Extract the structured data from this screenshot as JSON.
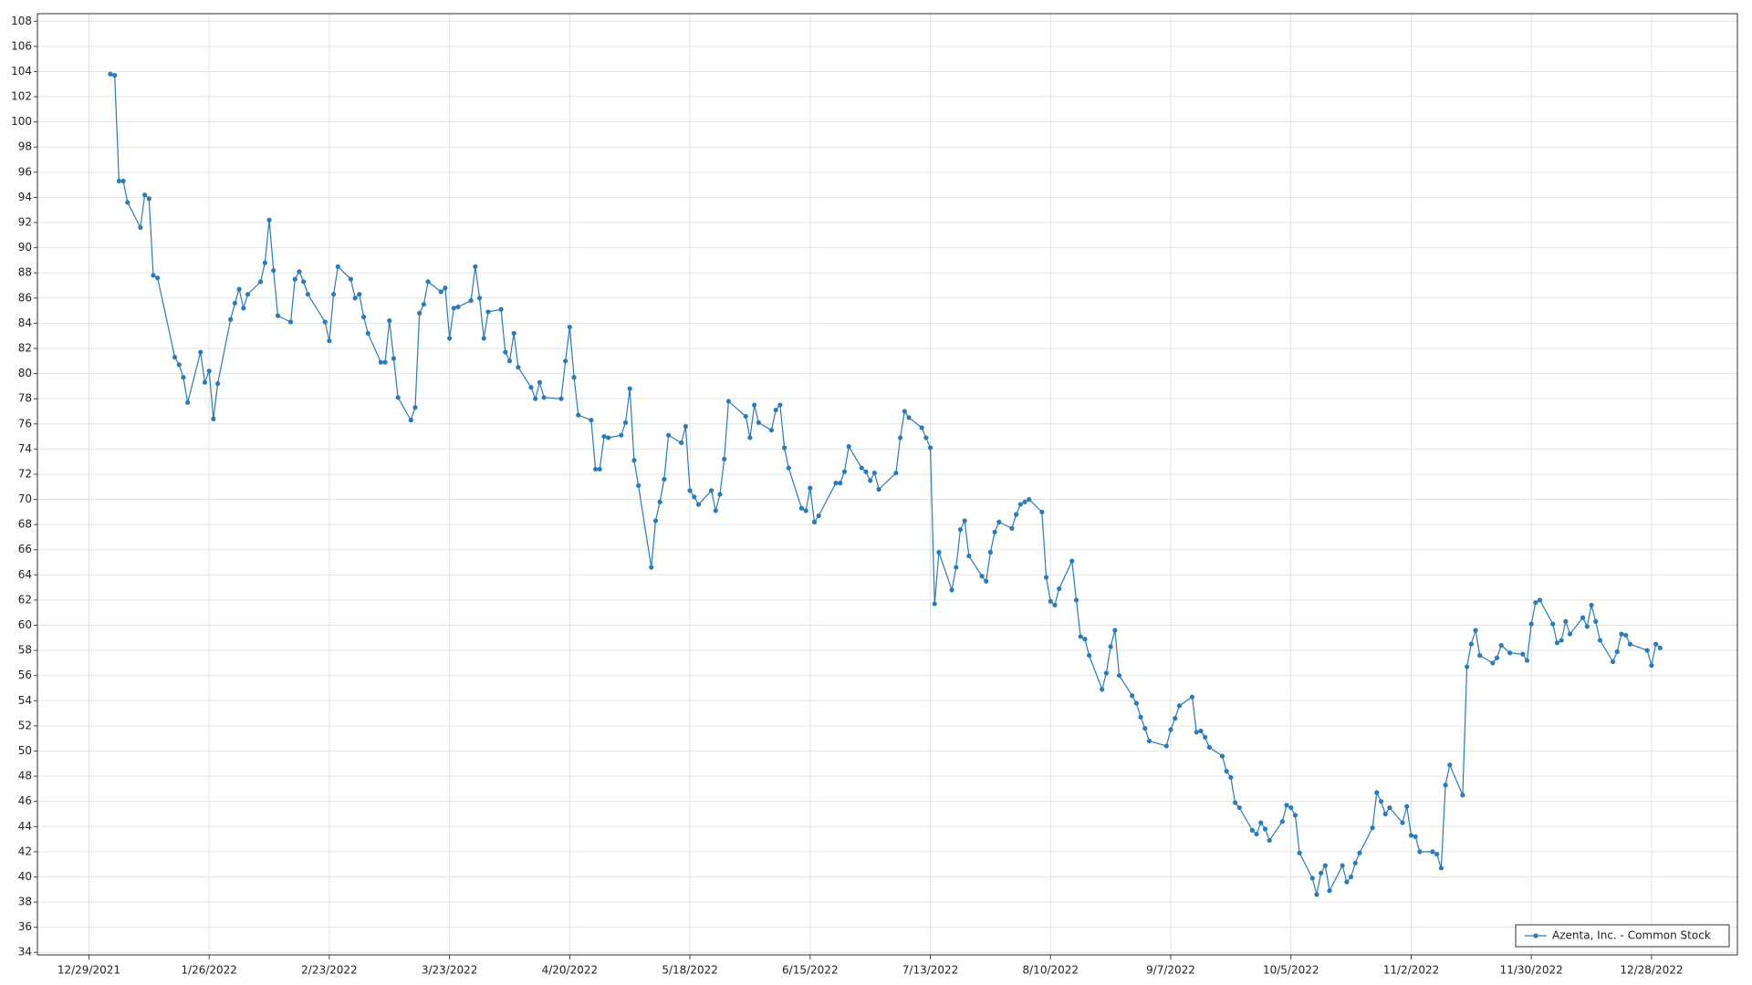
{
  "chart_data": {
    "type": "line",
    "x": [
      "1/3/2022",
      "1/4/2022",
      "1/5/2022",
      "1/6/2022",
      "1/7/2022",
      "1/10/2022",
      "1/11/2022",
      "1/12/2022",
      "1/13/2022",
      "1/14/2022",
      "1/18/2022",
      "1/19/2022",
      "1/20/2022",
      "1/21/2022",
      "1/24/2022",
      "1/25/2022",
      "1/26/2022",
      "1/27/2022",
      "1/28/2022",
      "1/31/2022",
      "2/1/2022",
      "2/2/2022",
      "2/3/2022",
      "2/4/2022",
      "2/7/2022",
      "2/8/2022",
      "2/9/2022",
      "2/10/2022",
      "2/11/2022",
      "2/14/2022",
      "2/15/2022",
      "2/16/2022",
      "2/17/2022",
      "2/18/2022",
      "2/22/2022",
      "2/23/2022",
      "2/24/2022",
      "2/25/2022",
      "2/28/2022",
      "3/1/2022",
      "3/2/2022",
      "3/3/2022",
      "3/4/2022",
      "3/7/2022",
      "3/8/2022",
      "3/9/2022",
      "3/10/2022",
      "3/11/2022",
      "3/14/2022",
      "3/15/2022",
      "3/16/2022",
      "3/17/2022",
      "3/18/2022",
      "3/21/2022",
      "3/22/2022",
      "3/23/2022",
      "3/24/2022",
      "3/25/2022",
      "3/28/2022",
      "3/29/2022",
      "3/30/2022",
      "3/31/2022",
      "4/1/2022",
      "4/4/2022",
      "4/5/2022",
      "4/6/2022",
      "4/7/2022",
      "4/8/2022",
      "4/11/2022",
      "4/12/2022",
      "4/13/2022",
      "4/14/2022",
      "4/18/2022",
      "4/19/2022",
      "4/20/2022",
      "4/21/2022",
      "4/22/2022",
      "4/25/2022",
      "4/26/2022",
      "4/27/2022",
      "4/28/2022",
      "4/29/2022",
      "5/2/2022",
      "5/3/2022",
      "5/4/2022",
      "5/5/2022",
      "5/6/2022",
      "5/9/2022",
      "5/10/2022",
      "5/11/2022",
      "5/12/2022",
      "5/13/2022",
      "5/16/2022",
      "5/17/2022",
      "5/18/2022",
      "5/19/2022",
      "5/20/2022",
      "5/23/2022",
      "5/24/2022",
      "5/25/2022",
      "5/26/2022",
      "5/27/2022",
      "5/31/2022",
      "6/1/2022",
      "6/2/2022",
      "6/3/2022",
      "6/6/2022",
      "6/7/2022",
      "6/8/2022",
      "6/9/2022",
      "6/10/2022",
      "6/13/2022",
      "6/14/2022",
      "6/15/2022",
      "6/16/2022",
      "6/17/2022",
      "6/21/2022",
      "6/22/2022",
      "6/23/2022",
      "6/24/2022",
      "6/27/2022",
      "6/28/2022",
      "6/29/2022",
      "6/30/2022",
      "7/1/2022",
      "7/5/2022",
      "7/6/2022",
      "7/7/2022",
      "7/8/2022",
      "7/11/2022",
      "7/12/2022",
      "7/13/2022",
      "7/14/2022",
      "7/15/2022",
      "7/18/2022",
      "7/19/2022",
      "7/20/2022",
      "7/21/2022",
      "7/22/2022",
      "7/25/2022",
      "7/26/2022",
      "7/27/2022",
      "7/28/2022",
      "7/29/2022",
      "8/1/2022",
      "8/2/2022",
      "8/3/2022",
      "8/4/2022",
      "8/5/2022",
      "8/8/2022",
      "8/9/2022",
      "8/10/2022",
      "8/11/2022",
      "8/12/2022",
      "8/15/2022",
      "8/16/2022",
      "8/17/2022",
      "8/18/2022",
      "8/19/2022",
      "8/22/2022",
      "8/23/2022",
      "8/24/2022",
      "8/25/2022",
      "8/26/2022",
      "8/29/2022",
      "8/30/2022",
      "8/31/2022",
      "9/1/2022",
      "9/2/2022",
      "9/6/2022",
      "9/7/2022",
      "9/8/2022",
      "9/9/2022",
      "9/12/2022",
      "9/13/2022",
      "9/14/2022",
      "9/15/2022",
      "9/16/2022",
      "9/19/2022",
      "9/20/2022",
      "9/21/2022",
      "9/22/2022",
      "9/23/2022",
      "9/26/2022",
      "9/27/2022",
      "9/28/2022",
      "9/29/2022",
      "9/30/2022",
      "10/3/2022",
      "10/4/2022",
      "10/5/2022",
      "10/6/2022",
      "10/7/2022",
      "10/10/2022",
      "10/11/2022",
      "10/12/2022",
      "10/13/2022",
      "10/14/2022",
      "10/17/2022",
      "10/18/2022",
      "10/19/2022",
      "10/20/2022",
      "10/21/2022",
      "10/24/2022",
      "10/25/2022",
      "10/26/2022",
      "10/27/2022",
      "10/28/2022",
      "10/31/2022",
      "11/1/2022",
      "11/2/2022",
      "11/3/2022",
      "11/4/2022",
      "11/7/2022",
      "11/8/2022",
      "11/9/2022",
      "11/10/2022",
      "11/11/2022",
      "11/14/2022",
      "11/15/2022",
      "11/16/2022",
      "11/17/2022",
      "11/18/2022",
      "11/21/2022",
      "11/22/2022",
      "11/23/2022",
      "11/25/2022",
      "11/28/2022",
      "11/29/2022",
      "11/30/2022",
      "12/1/2022",
      "12/2/2022",
      "12/5/2022",
      "12/6/2022",
      "12/7/2022",
      "12/8/2022",
      "12/9/2022",
      "12/12/2022",
      "12/13/2022",
      "12/14/2022",
      "12/15/2022",
      "12/16/2022",
      "12/19/2022",
      "12/20/2022",
      "12/21/2022",
      "12/22/2022",
      "12/23/2022",
      "12/27/2022",
      "12/28/2022",
      "12/29/2022",
      "12/30/2022"
    ],
    "series": [
      {
        "name": "Azenta, Inc. - Common Stock",
        "color": "#2b7bb9",
        "values": [
          103.8,
          103.7,
          95.3,
          95.3,
          93.6,
          91.6,
          94.2,
          93.9,
          87.8,
          87.6,
          81.3,
          80.7,
          79.7,
          77.7,
          81.7,
          79.3,
          80.2,
          76.4,
          79.2,
          84.3,
          85.6,
          86.7,
          85.2,
          86.3,
          87.3,
          88.8,
          92.2,
          88.2,
          84.6,
          84.1,
          87.5,
          88.1,
          87.3,
          86.3,
          84.1,
          82.6,
          86.3,
          88.5,
          87.5,
          86.0,
          86.3,
          84.5,
          83.2,
          80.9,
          80.9,
          84.2,
          81.2,
          78.1,
          76.3,
          77.3,
          84.8,
          85.5,
          87.3,
          86.5,
          86.8,
          82.8,
          85.2,
          85.3,
          85.8,
          88.5,
          86.0,
          82.8,
          84.9,
          85.1,
          81.7,
          81.0,
          83.2,
          80.5,
          78.9,
          78.0,
          79.3,
          78.1,
          78.0,
          81.0,
          83.7,
          79.7,
          76.7,
          76.3,
          72.4,
          72.4,
          75.0,
          74.9,
          75.1,
          76.1,
          78.8,
          73.1,
          71.1,
          64.6,
          68.3,
          69.8,
          71.6,
          75.1,
          74.5,
          75.8,
          70.7,
          70.2,
          69.6,
          70.7,
          69.1,
          70.4,
          73.2,
          77.8,
          76.6,
          74.9,
          77.5,
          76.1,
          75.5,
          77.1,
          77.5,
          74.1,
          72.5,
          69.3,
          69.1,
          70.9,
          68.2,
          68.7,
          71.3,
          71.3,
          72.2,
          74.2,
          72.5,
          72.2,
          71.5,
          72.1,
          70.8,
          72.1,
          74.9,
          77.0,
          76.5,
          75.7,
          74.9,
          74.1,
          61.7,
          65.8,
          62.8,
          64.6,
          67.6,
          68.3,
          65.5,
          63.9,
          63.5,
          65.8,
          67.4,
          68.2,
          67.7,
          68.8,
          69.6,
          69.8,
          70.0,
          69.0,
          63.8,
          61.9,
          61.6,
          62.9,
          65.1,
          62.0,
          59.1,
          58.9,
          57.6,
          54.9,
          56.2,
          58.3,
          59.6,
          56.0,
          54.4,
          53.8,
          52.7,
          51.8,
          50.8,
          50.4,
          51.7,
          52.6,
          53.6,
          54.3,
          51.5,
          51.6,
          51.1,
          50.3,
          49.6,
          48.4,
          47.9,
          45.9,
          45.5,
          43.7,
          43.4,
          44.3,
          43.8,
          42.9,
          44.4,
          45.7,
          45.5,
          44.9,
          41.9,
          39.9,
          38.6,
          40.3,
          40.9,
          38.9,
          40.9,
          39.6,
          40.0,
          41.1,
          41.9,
          43.9,
          46.7,
          46.0,
          45.0,
          45.5,
          44.3,
          45.6,
          43.3,
          43.2,
          42.0,
          42.0,
          41.8,
          40.7,
          47.3,
          48.9,
          46.5,
          56.7,
          58.5,
          59.6,
          57.6,
          57.0,
          57.4,
          58.4,
          57.8,
          57.7,
          57.2,
          60.1,
          61.8,
          62.0,
          60.1,
          58.6,
          58.8,
          60.3,
          59.3,
          60.6,
          59.9,
          61.6,
          60.3,
          58.8,
          57.1,
          57.9,
          59.3,
          59.2,
          58.5,
          58.0,
          56.8,
          58.5,
          58.2
        ]
      }
    ],
    "xlim": [
      "12/17/2021",
      "1/17/2023"
    ],
    "xticks": [
      "12/29/2021",
      "1/26/2022",
      "2/23/2022",
      "3/23/2022",
      "4/20/2022",
      "5/18/2022",
      "6/15/2022",
      "7/13/2022",
      "8/10/2022",
      "9/7/2022",
      "10/5/2022",
      "11/2/2022",
      "11/30/2022",
      "12/28/2022"
    ],
    "ylim": [
      33.8,
      108.6
    ],
    "yticks": [
      34,
      36,
      38,
      40,
      42,
      44,
      46,
      48,
      50,
      52,
      54,
      56,
      58,
      60,
      62,
      64,
      66,
      68,
      70,
      72,
      74,
      76,
      78,
      80,
      82,
      84,
      86,
      88,
      90,
      92,
      94,
      96,
      98,
      100,
      102,
      104,
      106,
      108
    ],
    "grid": true,
    "legend": "lower right",
    "markers": true
  }
}
